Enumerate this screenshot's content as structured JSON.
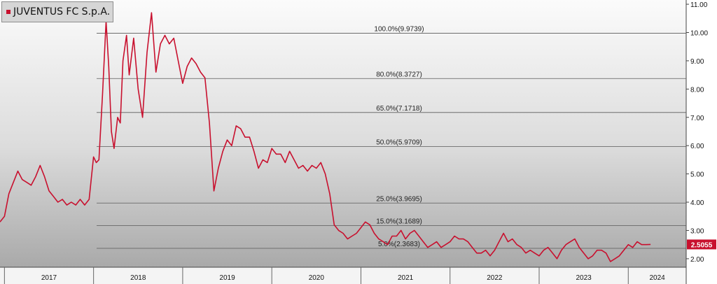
{
  "chart_data": {
    "type": "line",
    "title": "",
    "xlabel": "",
    "ylabel": "",
    "ylim": [
      1.7,
      11.15
    ],
    "xlim": [
      2016.95,
      2024.65
    ],
    "grid": false,
    "legend_position": "top-left",
    "y_ticks": [
      "2.00",
      "3.00",
      "4.00",
      "5.00",
      "6.00",
      "7.00",
      "8.00",
      "9.00",
      "10.00",
      "11.00"
    ],
    "x_ticks": [
      "2017",
      "2018",
      "2019",
      "2020",
      "2021",
      "2022",
      "2023",
      "2024"
    ],
    "last_value_label": "2.5055",
    "series": [
      {
        "name": "JUVENTUS FC S.p.A.",
        "color": "#c8102e",
        "x": [
          2016.95,
          2017.0,
          2017.05,
          2017.1,
          2017.15,
          2017.2,
          2017.25,
          2017.3,
          2017.35,
          2017.4,
          2017.45,
          2017.5,
          2017.55,
          2017.6,
          2017.65,
          2017.7,
          2017.75,
          2017.8,
          2017.85,
          2017.9,
          2017.95,
          2018.0,
          2018.03,
          2018.06,
          2018.1,
          2018.14,
          2018.17,
          2018.2,
          2018.23,
          2018.27,
          2018.3,
          2018.33,
          2018.37,
          2018.4,
          2018.45,
          2018.5,
          2018.55,
          2018.6,
          2018.65,
          2018.7,
          2018.75,
          2018.8,
          2018.85,
          2018.9,
          2018.95,
          2019.0,
          2019.05,
          2019.1,
          2019.15,
          2019.2,
          2019.25,
          2019.3,
          2019.35,
          2019.4,
          2019.45,
          2019.5,
          2019.55,
          2019.6,
          2019.65,
          2019.7,
          2019.75,
          2019.8,
          2019.85,
          2019.9,
          2019.95,
          2020.0,
          2020.05,
          2020.1,
          2020.15,
          2020.2,
          2020.25,
          2020.3,
          2020.35,
          2020.4,
          2020.45,
          2020.5,
          2020.55,
          2020.6,
          2020.65,
          2020.7,
          2020.75,
          2020.8,
          2020.85,
          2020.9,
          2020.95,
          2021.0,
          2021.05,
          2021.1,
          2021.15,
          2021.2,
          2021.25,
          2021.3,
          2021.35,
          2021.4,
          2021.45,
          2021.5,
          2021.55,
          2021.6,
          2021.65,
          2021.7,
          2021.75,
          2021.8,
          2021.85,
          2021.9,
          2021.95,
          2022.0,
          2022.05,
          2022.1,
          2022.15,
          2022.2,
          2022.25,
          2022.3,
          2022.35,
          2022.4,
          2022.45,
          2022.5,
          2022.55,
          2022.6,
          2022.65,
          2022.7,
          2022.75,
          2022.8,
          2022.85,
          2022.9,
          2022.95,
          2023.0,
          2023.05,
          2023.1,
          2023.15,
          2023.2,
          2023.25,
          2023.3,
          2023.35,
          2023.4,
          2023.45,
          2023.5,
          2023.55,
          2023.6,
          2023.65,
          2023.7,
          2023.75,
          2023.8,
          2023.85,
          2023.9,
          2023.95,
          2024.0,
          2024.05,
          2024.1,
          2024.15,
          2024.2,
          2024.25
        ],
        "values": [
          3.3,
          3.5,
          4.3,
          4.7,
          5.1,
          4.8,
          4.7,
          4.6,
          4.9,
          5.3,
          4.9,
          4.4,
          4.2,
          4.0,
          4.1,
          3.9,
          4.0,
          3.9,
          4.1,
          3.9,
          4.1,
          5.6,
          5.4,
          5.5,
          7.8,
          10.4,
          8.8,
          6.5,
          5.9,
          7.0,
          6.8,
          9.0,
          9.9,
          8.5,
          9.8,
          8.0,
          7.0,
          9.3,
          10.7,
          8.6,
          9.6,
          9.9,
          9.6,
          9.8,
          9.0,
          8.2,
          8.8,
          9.1,
          8.9,
          8.6,
          8.4,
          6.8,
          4.4,
          5.2,
          5.8,
          6.2,
          6.0,
          6.7,
          6.6,
          6.3,
          6.3,
          5.8,
          5.2,
          5.5,
          5.4,
          5.9,
          5.7,
          5.7,
          5.4,
          5.8,
          5.5,
          5.2,
          5.3,
          5.1,
          5.3,
          5.2,
          5.4,
          5.0,
          4.3,
          3.2,
          3.0,
          2.9,
          2.7,
          2.8,
          2.9,
          3.1,
          3.3,
          3.2,
          2.9,
          2.7,
          2.6,
          2.5,
          2.8,
          2.8,
          3.0,
          2.7,
          2.9,
          3.0,
          2.8,
          2.6,
          2.4,
          2.5,
          2.6,
          2.4,
          2.5,
          2.6,
          2.8,
          2.7,
          2.7,
          2.6,
          2.4,
          2.2,
          2.2,
          2.3,
          2.1,
          2.3,
          2.6,
          2.9,
          2.6,
          2.7,
          2.5,
          2.4,
          2.2,
          2.3,
          2.2,
          2.1,
          2.3,
          2.4,
          2.2,
          2.0,
          2.3,
          2.5,
          2.6,
          2.7,
          2.4,
          2.2,
          2.0,
          2.1,
          2.3,
          2.3,
          2.2,
          1.9,
          2.0,
          2.1,
          2.3,
          2.5,
          2.4,
          2.6,
          2.5,
          2.5,
          2.5055
        ]
      }
    ],
    "retracement_lines": [
      {
        "label": "100.0%(9.9739)",
        "value": 9.9739
      },
      {
        "label": "80.0%(8.3727)",
        "value": 8.3727
      },
      {
        "label": "65.0%(7.1718)",
        "value": 7.1718
      },
      {
        "label": "50.0%(5.9709)",
        "value": 5.9709
      },
      {
        "label": "25.0%(3.9695)",
        "value": 3.9695
      },
      {
        "label": "15.0%(3.1689)",
        "value": 3.1689
      },
      {
        "label": "5.0%(2.3683)",
        "value": 2.3683
      }
    ]
  }
}
